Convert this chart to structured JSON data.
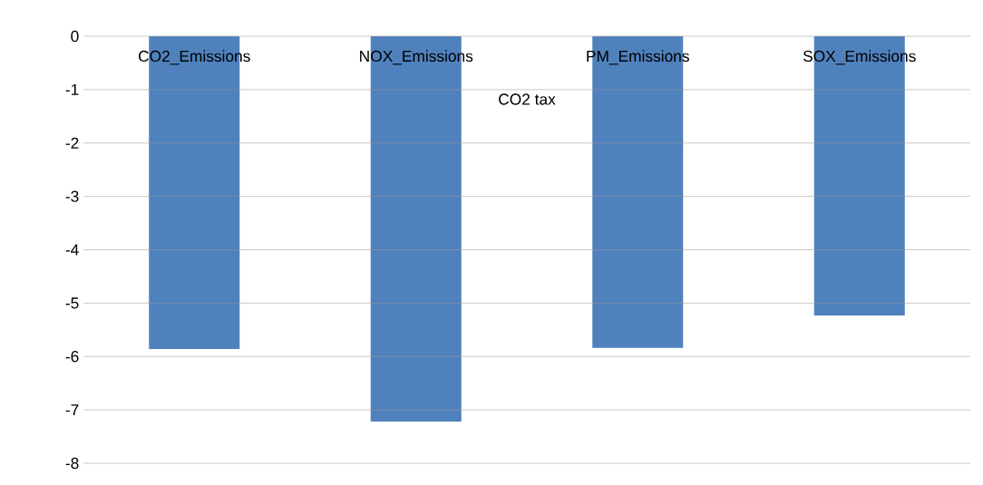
{
  "chart_data": {
    "type": "bar",
    "xlabel": "CO2 tax",
    "categories": [
      "CO2_Emissions",
      "NOX_Emissions",
      "PM_Emissions",
      "SOX_Emissions"
    ],
    "values": [
      -5.86,
      -7.22,
      -5.84,
      -5.23
    ],
    "color": "#4f81bd",
    "ylim": [
      -8,
      0
    ],
    "yticks": [
      -8,
      -7,
      -6,
      -5,
      -4,
      -3,
      -2,
      -1,
      0
    ],
    "grid": "y"
  }
}
